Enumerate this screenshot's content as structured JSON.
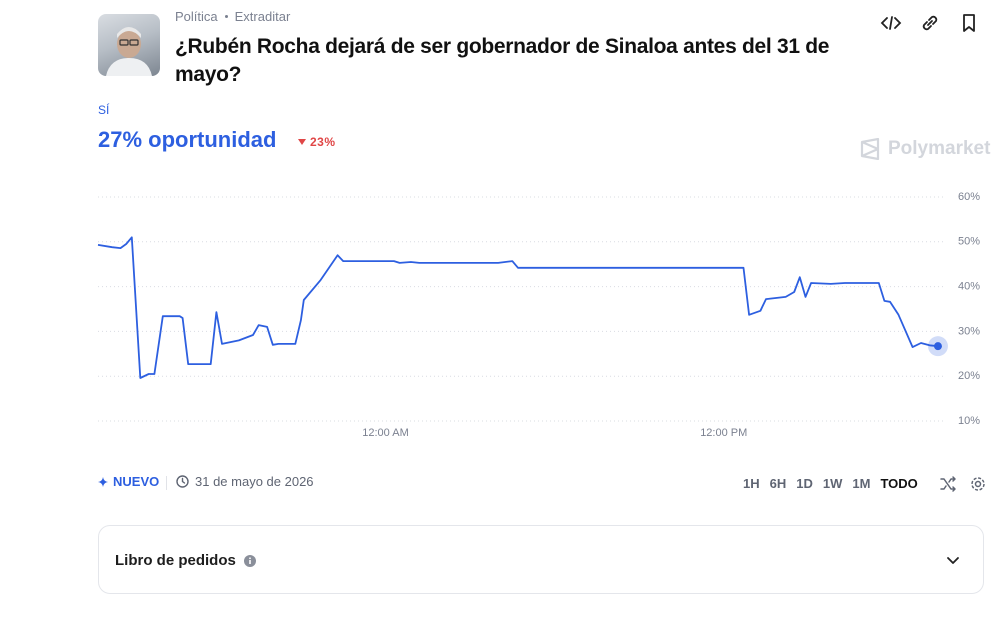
{
  "header": {
    "category": "Política",
    "tag": "Extraditar",
    "title": "¿Rubén Rocha dejará de ser gobernador de Sinaloa antes del 31 de mayo?"
  },
  "outcome": {
    "label": "SÍ",
    "chance": "27% oportunidad",
    "change": "23%"
  },
  "brand": "Polymarket",
  "chart_data": {
    "type": "line",
    "color": "#2d5fe0",
    "grid": true,
    "x": [
      -10.2,
      -9.7,
      -9.4,
      -9.2,
      -9.0,
      -8.7,
      -8.4,
      -8.2,
      -7.9,
      -7.3,
      -7.2,
      -7.0,
      -6.2,
      -6.0,
      -5.8,
      -5.2,
      -4.7,
      -4.5,
      -4.2,
      -4.0,
      -3.8,
      -3.2,
      -3.0,
      -2.9,
      -2.3,
      -1.7,
      -1.5,
      0.3,
      0.5,
      0.9,
      1.2,
      4.0,
      4.5,
      4.7,
      12.7,
      12.9,
      13.3,
      13.5,
      14.2,
      14.5,
      14.7,
      14.9,
      15.1,
      15.8,
      16.3,
      17.5,
      17.7,
      17.9,
      18.2,
      18.7,
      19.0,
      19.3,
      19.6
    ],
    "values": [
      49.3,
      48.8,
      48.6,
      49.5,
      51,
      19.6,
      20.5,
      20.5,
      33.4,
      33.4,
      33,
      22.7,
      22.7,
      34.3,
      27.2,
      28,
      29.2,
      31.4,
      31,
      27,
      27.2,
      27.2,
      32.5,
      37,
      41.5,
      47,
      45.7,
      45.7,
      45.3,
      45.5,
      45.3,
      45.3,
      45.7,
      44.2,
      44.2,
      33.7,
      34.6,
      37.2,
      37.7,
      38.8,
      42.1,
      37.7,
      40.8,
      40.6,
      40.8,
      40.8,
      36.8,
      36.6,
      33.7,
      26.5,
      27.4,
      26.9,
      26.7
    ],
    "xlim": [
      -10.2,
      19.85
    ],
    "xticks": [
      {
        "value": 0,
        "label": "12:00 AM"
      },
      {
        "value": 12,
        "label": "12:00 PM"
      }
    ],
    "ylim": [
      10,
      60
    ],
    "yticks": [
      {
        "value": 10,
        "label": "10%"
      },
      {
        "value": 20,
        "label": "20%"
      },
      {
        "value": 30,
        "label": "30%"
      },
      {
        "value": 40,
        "label": "40%"
      },
      {
        "value": 50,
        "label": "50%"
      },
      {
        "value": 60,
        "label": "60%"
      }
    ]
  },
  "footer": {
    "badge": "NUEVO",
    "date": "31 de mayo de 2026",
    "ranges": [
      "1H",
      "6H",
      "1D",
      "1W",
      "1M",
      "TODO"
    ]
  },
  "orderbook": {
    "title": "Libro de pedidos"
  }
}
